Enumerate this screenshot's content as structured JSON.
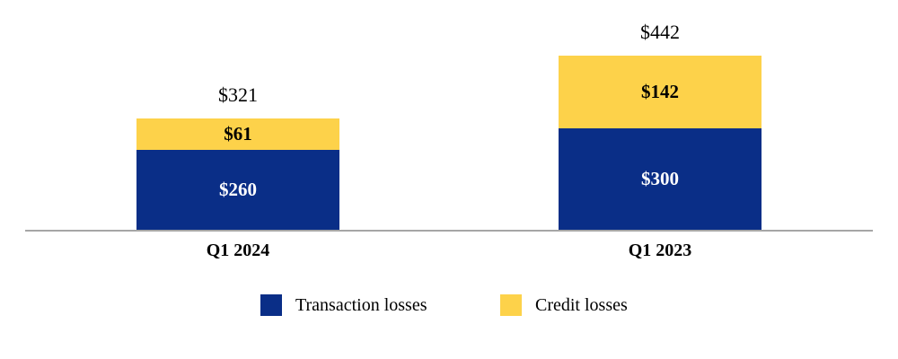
{
  "chart": {
    "bars": [
      {
        "category": "Q1 2024",
        "total_label": "$321",
        "segments": [
          {
            "name": "Transaction losses",
            "label": "$260"
          },
          {
            "name": "Credit losses",
            "label": "$61"
          }
        ]
      },
      {
        "category": "Q1 2023",
        "total_label": "$442",
        "segments": [
          {
            "name": "Transaction losses",
            "label": "$300"
          },
          {
            "name": "Credit losses",
            "label": "$142"
          }
        ]
      }
    ],
    "legend": [
      {
        "label": "Transaction losses",
        "color": "#0A2E87"
      },
      {
        "label": "Credit losses",
        "color": "#FDD24A"
      }
    ],
    "colors": {
      "transaction_losses": "#0A2E87",
      "credit_losses": "#FDD24A",
      "axis_line": "#A6A6A6",
      "background": "#FFFFFF"
    }
  },
  "chart_data": {
    "type": "bar",
    "stacked": true,
    "categories": [
      "Q1 2024",
      "Q1 2023"
    ],
    "series": [
      {
        "name": "Transaction losses",
        "values": [
          260,
          300
        ],
        "color": "#0A2E87"
      },
      {
        "name": "Credit losses",
        "values": [
          61,
          142
        ],
        "color": "#FDD24A"
      }
    ],
    "totals": [
      321,
      442
    ],
    "value_prefix": "$",
    "title": "",
    "xlabel": "",
    "ylabel": "",
    "grid": false,
    "legend_position": "bottom",
    "data_labels": "inside-segments-and-total-above"
  }
}
